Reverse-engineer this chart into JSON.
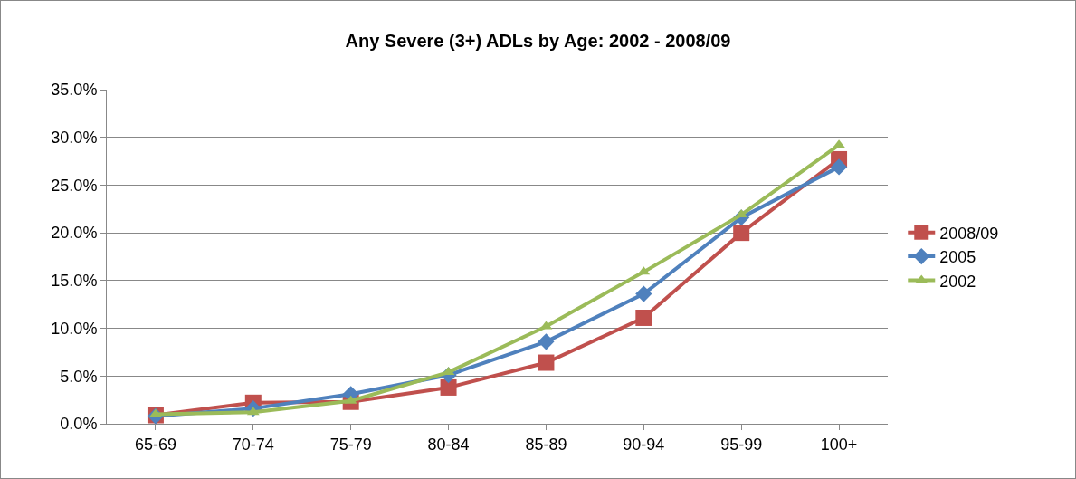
{
  "chart_data": {
    "type": "line",
    "title": "Any Severe (3+) ADLs by Age: 2002 - 2008/09",
    "categories": [
      "65-69",
      "70-74",
      "75-79",
      "80-84",
      "85-89",
      "90-94",
      "95-99",
      "100+"
    ],
    "series": [
      {
        "name": "2008/09",
        "color": "#c0504d",
        "marker": "square",
        "values": [
          0.9,
          2.2,
          2.3,
          3.8,
          6.4,
          11.1,
          20.0,
          27.7
        ]
      },
      {
        "name": "2005",
        "color": "#4f81bd",
        "marker": "diamond",
        "values": [
          0.8,
          1.6,
          3.1,
          5.1,
          8.6,
          13.6,
          21.6,
          26.9
        ]
      },
      {
        "name": "2002",
        "color": "#9bbb59",
        "marker": "triangle",
        "values": [
          1.0,
          1.2,
          2.4,
          5.4,
          10.2,
          15.9,
          21.9,
          29.2
        ]
      }
    ],
    "ylim": [
      0,
      35
    ],
    "yticks": [
      {
        "value": 0,
        "label": "0.0%"
      },
      {
        "value": 5,
        "label": "5.0%"
      },
      {
        "value": 10,
        "label": "10.0%"
      },
      {
        "value": 15,
        "label": "15.0%"
      },
      {
        "value": 20,
        "label": "20.0%"
      },
      {
        "value": 25,
        "label": "25.0%"
      },
      {
        "value": 30,
        "label": "30.0%"
      },
      {
        "value": 35,
        "label": "35.0%"
      }
    ],
    "grid": "y",
    "legend": "right",
    "line_style": "solid"
  }
}
